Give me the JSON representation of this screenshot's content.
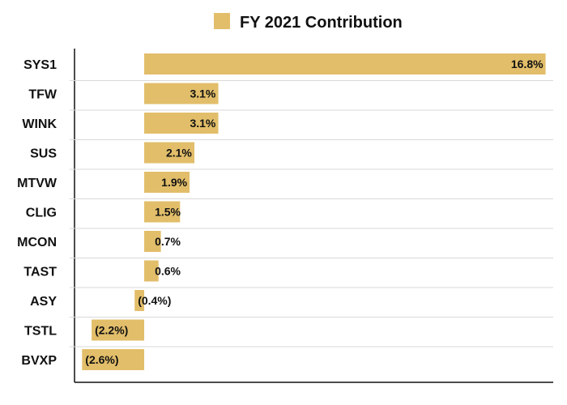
{
  "chart_data": {
    "type": "bar",
    "orientation": "horizontal",
    "categories": [
      "SYS1",
      "TFW",
      "WINK",
      "SUS",
      "MTVW",
      "CLIG",
      "MCON",
      "TAST",
      "ASY",
      "TSTL",
      "BVXP"
    ],
    "series": [
      {
        "name": "FY 2021 Contribution",
        "values": [
          16.8,
          3.1,
          3.1,
          2.1,
          1.9,
          1.5,
          0.7,
          0.6,
          -0.4,
          -2.2,
          -2.6
        ],
        "labels": [
          "16.8%",
          "3.1%",
          "3.1%",
          "2.1%",
          "1.9%",
          "1.5%",
          "0.7%",
          "0.6%",
          "(0.4%)",
          "(2.2%)",
          "(2.6%)"
        ],
        "color": "#E2BE6A"
      }
    ],
    "legend": "top-center",
    "grid": false
  }
}
